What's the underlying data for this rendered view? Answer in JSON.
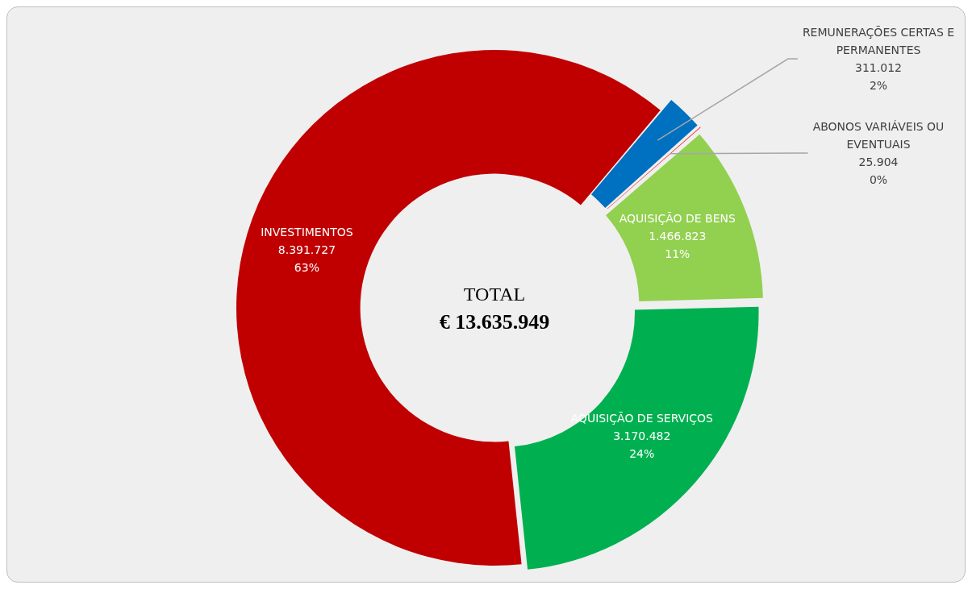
{
  "chart_data": {
    "type": "donut",
    "categories": [
      "REMUNERAÇÕES CERTAS E PERMANENTES",
      "ABONOS VARIÁVEIS OU EVENTUAIS",
      "AQUISIÇÃO DE BENS",
      "AQUISIÇÃO DE SERVIÇOS",
      "INVESTIMENTOS"
    ],
    "values": [
      311012,
      25904,
      1466823,
      3170482,
      8391727
    ],
    "colors": [
      "#0070c0",
      "#ff0000",
      "#92d050",
      "#00b050",
      "#c00000"
    ],
    "value_labels": [
      "311.012\n2%",
      "25.904\n0%",
      "1.466.823\n11%",
      "3.170.482\n24%",
      "8.391.727\n63%"
    ],
    "annotations": [
      "TOTAL",
      "€ 13.635.949"
    ]
  }
}
